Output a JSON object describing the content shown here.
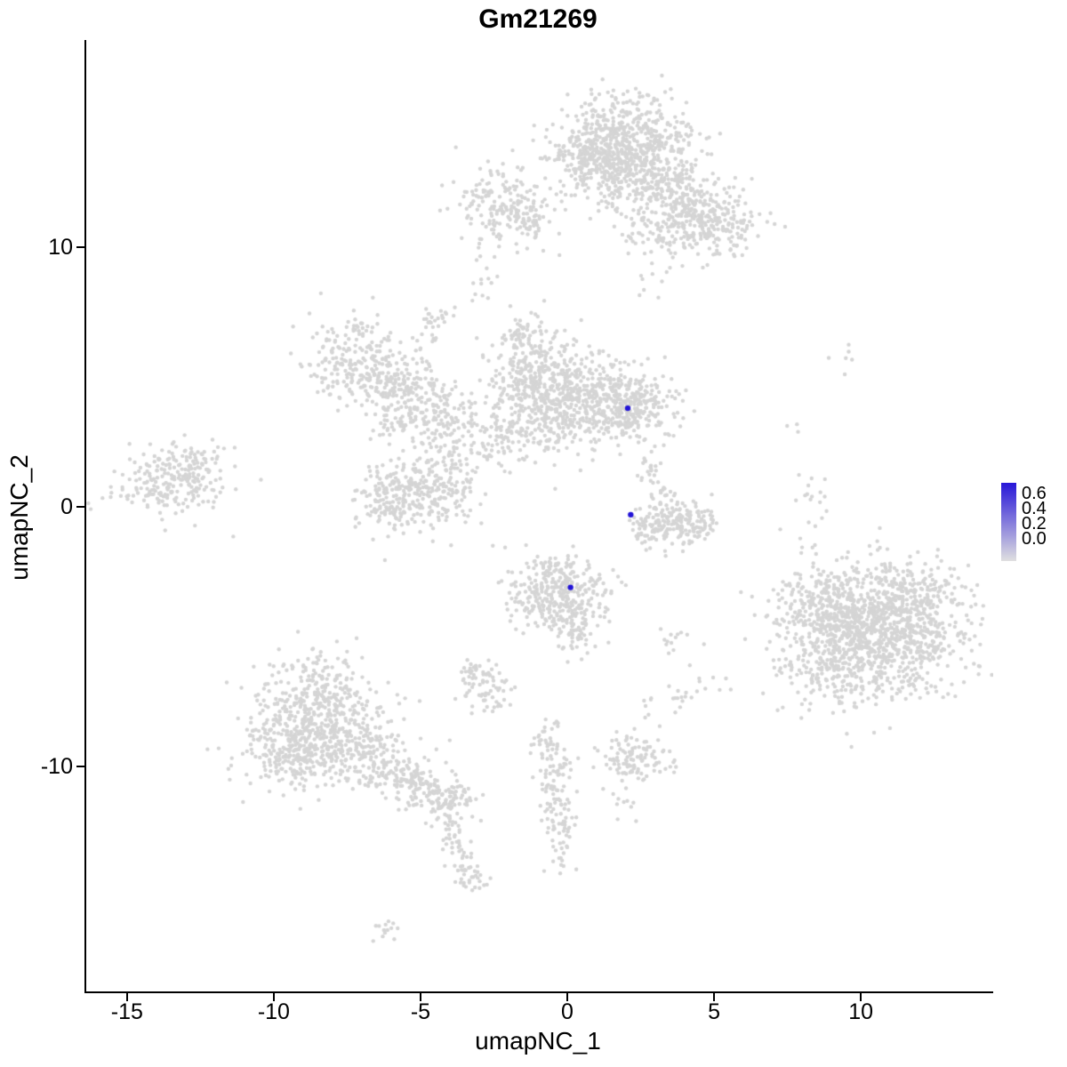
{
  "title": "Gm21269",
  "axes": {
    "x_label": "umapNC_1",
    "y_label": "umapNC_2",
    "x_ticks": [
      -15,
      -10,
      -5,
      0,
      5,
      10
    ],
    "y_ticks": [
      -10,
      0,
      10
    ]
  },
  "legend": {
    "labels": [
      "0.6",
      "0.4",
      "0.2",
      "0.0"
    ],
    "high_color": "#2716D8",
    "low_color": "#E0E0E0"
  },
  "colors": {
    "point_gray": "#D5D5D5",
    "point_blue": "#2213D6",
    "axis": "#000000"
  },
  "chart_data": {
    "type": "scatter",
    "title": "Gm21269",
    "xlabel": "umapNC_1",
    "ylabel": "umapNC_2",
    "xlim": [
      -16.45,
      14.45
    ],
    "ylim": [
      -18.66,
      17.98
    ],
    "x_ticks": [
      -15,
      -10,
      -5,
      0,
      5,
      10
    ],
    "y_ticks": [
      -10,
      0,
      10
    ],
    "legend_scale": {
      "min": 0.0,
      "max": 0.6,
      "breaks": [
        0.6,
        0.4,
        0.2,
        0.0
      ]
    },
    "grid": false,
    "legend_position": "right",
    "seed": 42,
    "point_radius": 2.2,
    "highlight_radius": 3.2,
    "cluster_format": "[center_x, center_y, sd_x, sd_y, n_points] - gaussian blobs approximating the grey UMAP cell clusters",
    "clusters": [
      [
        1.8,
        14.3,
        1.2,
        0.8,
        420
      ],
      [
        0.8,
        13.3,
        0.8,
        0.7,
        220
      ],
      [
        2.4,
        13.0,
        0.9,
        0.8,
        200
      ],
      [
        3.6,
        12.1,
        1.0,
        0.7,
        200
      ],
      [
        5.0,
        10.7,
        0.8,
        0.6,
        160
      ],
      [
        3.0,
        10.3,
        0.6,
        0.6,
        60
      ],
      [
        4.2,
        11.3,
        0.6,
        0.5,
        80
      ],
      [
        -2.4,
        11.7,
        0.7,
        0.8,
        160
      ],
      [
        -1.4,
        11.1,
        0.5,
        0.5,
        50
      ],
      [
        -3.0,
        8.4,
        0.25,
        0.3,
        10
      ],
      [
        -4.6,
        7.2,
        0.3,
        0.4,
        30
      ],
      [
        -7.3,
        5.7,
        0.85,
        0.85,
        210
      ],
      [
        -6.2,
        4.9,
        0.6,
        0.5,
        80
      ],
      [
        -5.3,
        4.4,
        0.7,
        0.6,
        110
      ],
      [
        -4.5,
        3.5,
        0.6,
        0.6,
        90
      ],
      [
        -5.8,
        3.2,
        0.5,
        0.4,
        40
      ],
      [
        -3.6,
        2.6,
        0.7,
        0.7,
        50
      ],
      [
        -1.3,
        4.9,
        0.8,
        1.0,
        330
      ],
      [
        0.4,
        4.3,
        0.9,
        0.8,
        260
      ],
      [
        1.9,
        3.9,
        0.85,
        0.7,
        320
      ],
      [
        -0.5,
        3.2,
        0.6,
        0.5,
        90
      ],
      [
        -2.1,
        2.6,
        0.5,
        0.6,
        60
      ],
      [
        -1.6,
        6.5,
        0.4,
        0.4,
        40
      ],
      [
        -5.2,
        0.6,
        0.9,
        0.8,
        240
      ],
      [
        -6.4,
        0.3,
        0.6,
        0.5,
        70
      ],
      [
        -4.0,
        1.1,
        0.6,
        0.5,
        60
      ],
      [
        -13.6,
        0.9,
        0.9,
        0.7,
        210
      ],
      [
        -12.5,
        1.7,
        0.5,
        0.5,
        40
      ],
      [
        2.9,
        1.4,
        0.3,
        0.4,
        25
      ],
      [
        3.1,
        0.3,
        0.25,
        0.4,
        18
      ],
      [
        3.4,
        -0.7,
        0.6,
        0.4,
        120
      ],
      [
        4.3,
        -0.5,
        0.4,
        0.4,
        60
      ],
      [
        2.6,
        -0.9,
        0.3,
        0.3,
        30
      ],
      [
        -0.3,
        -3.2,
        0.8,
        0.7,
        300
      ],
      [
        0.2,
        -4.6,
        0.4,
        0.5,
        70
      ],
      [
        -1.4,
        -4.1,
        0.4,
        0.3,
        25
      ],
      [
        10.4,
        -4.8,
        1.5,
        1.3,
        1150
      ],
      [
        8.6,
        -3.8,
        0.8,
        0.8,
        160
      ],
      [
        11.9,
        -3.3,
        0.8,
        0.6,
        120
      ],
      [
        9.0,
        -6.5,
        0.8,
        0.5,
        80
      ],
      [
        8.2,
        0.2,
        0.4,
        0.7,
        16
      ],
      [
        9.3,
        5.9,
        0.2,
        0.4,
        6
      ],
      [
        7.7,
        2.9,
        0.15,
        0.15,
        3
      ],
      [
        -8.6,
        -7.9,
        1.1,
        1.0,
        480
      ],
      [
        -9.4,
        -9.5,
        0.9,
        0.7,
        240
      ],
      [
        -7.0,
        -9.5,
        0.8,
        0.6,
        150
      ],
      [
        -5.5,
        -10.4,
        0.7,
        0.5,
        120
      ],
      [
        -4.3,
        -11.2,
        0.5,
        0.45,
        110
      ],
      [
        -3.9,
        -12.7,
        0.25,
        0.5,
        35
      ],
      [
        -3.5,
        -13.8,
        0.2,
        0.3,
        12
      ],
      [
        -3.3,
        -14.4,
        0.3,
        0.25,
        25
      ],
      [
        -6.1,
        -16.2,
        0.35,
        0.2,
        14
      ],
      [
        -2.7,
        -7.0,
        0.45,
        0.4,
        60
      ],
      [
        -3.3,
        -6.3,
        0.3,
        0.3,
        20
      ],
      [
        -0.8,
        -9.1,
        0.3,
        0.4,
        35
      ],
      [
        -0.5,
        -10.6,
        0.3,
        0.7,
        60
      ],
      [
        -0.3,
        -12.4,
        0.25,
        0.6,
        45
      ],
      [
        -0.2,
        -13.6,
        0.2,
        0.3,
        10
      ],
      [
        2.2,
        -9.7,
        0.55,
        0.5,
        110
      ],
      [
        3.4,
        -5.3,
        0.4,
        0.4,
        14
      ],
      [
        3.7,
        -7.3,
        0.35,
        0.3,
        12
      ],
      [
        5.0,
        -7.0,
        0.3,
        0.3,
        8
      ],
      [
        2.7,
        -7.7,
        0.25,
        0.25,
        6
      ],
      [
        1.9,
        -11.6,
        0.3,
        0.3,
        8
      ],
      [
        0.3,
        1.8,
        0.5,
        0.5,
        8
      ],
      [
        2.5,
        8.2,
        0.3,
        0.3,
        5
      ],
      [
        -3.0,
        9.9,
        0.3,
        0.3,
        6
      ]
    ],
    "expressed_cells": [
      {
        "x": 2.0,
        "y": 3.8,
        "value": 0.65
      },
      {
        "x": 2.1,
        "y": -0.3,
        "value": 0.6
      },
      {
        "x": 0.05,
        "y": -3.1,
        "value": 0.62
      }
    ]
  }
}
